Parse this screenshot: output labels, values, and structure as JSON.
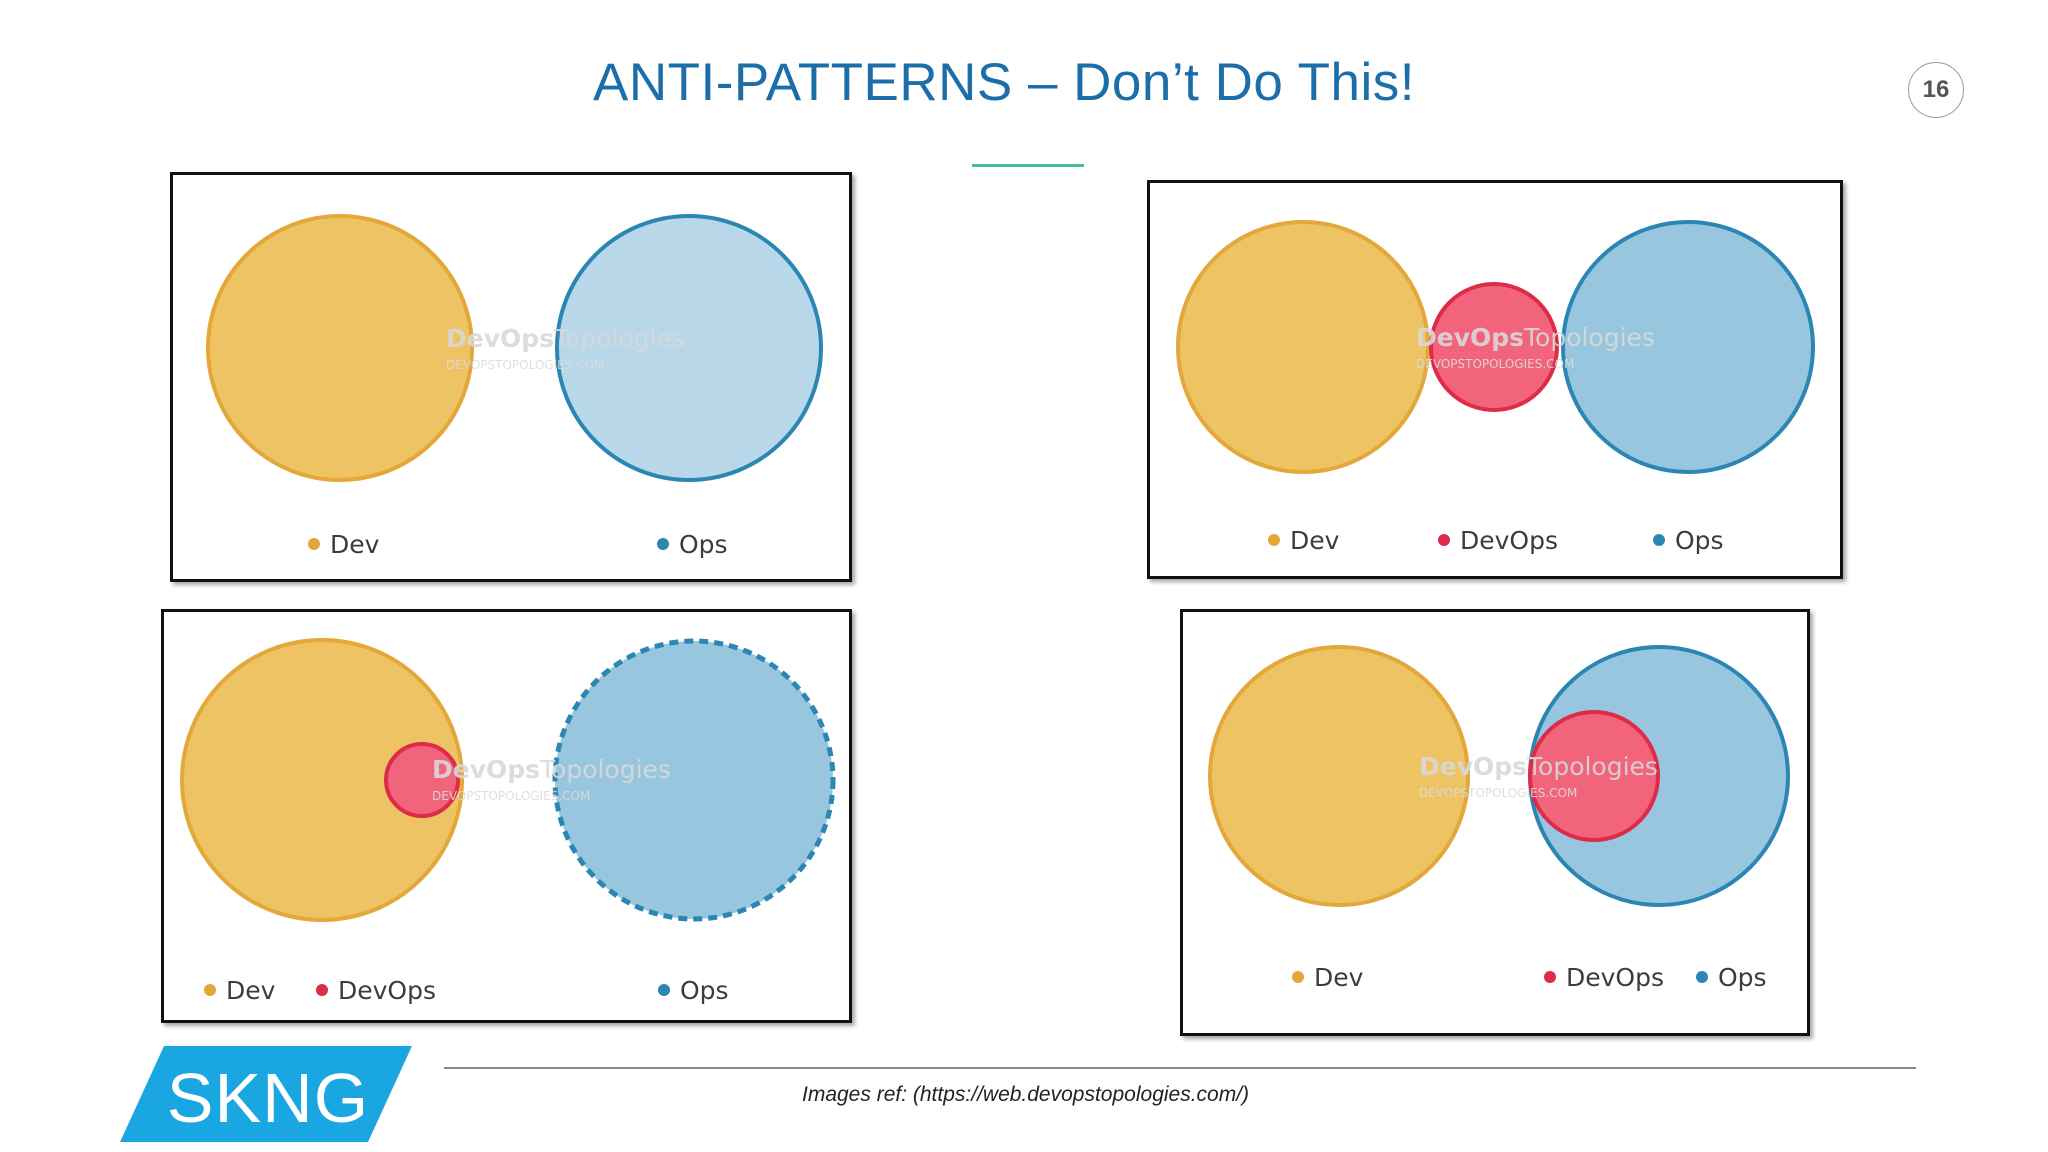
{
  "slide": {
    "title": "ANTI-PATTERNS – Don’t Do This!",
    "page_number": "16",
    "footer_ref": "Images ref: (https://web.devopstopologies.com/)",
    "logo_text": "SKNG"
  },
  "watermark": {
    "text_bold": "DevOps",
    "text_light": "Topologies",
    "url": "DEVOPSTOPOLOGIES.COM"
  },
  "colors": {
    "title": "#1b6ea8",
    "dev_fill": "#eec363",
    "dev_stroke": "#e3a73a",
    "ops_fill_light": "#b8d8ea",
    "ops_fill": "#98c6df",
    "ops_stroke": "#2b86b4",
    "devops_fill": "#f2647b",
    "devops_stroke": "#dc2c48",
    "logo_blue": "#1aa6e0"
  },
  "diagrams": [
    {
      "id": "dev-ops-silos",
      "legend": [
        {
          "label": "Dev",
          "color": "#e3a73a"
        },
        {
          "label": "Ops",
          "color": "#2b86b4"
        }
      ]
    },
    {
      "id": "devops-team-silo",
      "legend": [
        {
          "label": "Dev",
          "color": "#e3a73a"
        },
        {
          "label": "DevOps",
          "color": "#dc2c48"
        },
        {
          "label": "Ops",
          "color": "#2b86b4"
        }
      ]
    },
    {
      "id": "dev-dont-need-ops",
      "legend": [
        {
          "label": "Dev",
          "color": "#e3a73a"
        },
        {
          "label": "DevOps",
          "color": "#dc2c48"
        },
        {
          "label": "Ops",
          "color": "#2b86b4"
        }
      ]
    },
    {
      "id": "devops-as-tools-team",
      "legend": [
        {
          "label": "Dev",
          "color": "#e3a73a"
        },
        {
          "label": "DevOps",
          "color": "#dc2c48"
        },
        {
          "label": "Ops",
          "color": "#2b86b4"
        }
      ]
    }
  ]
}
